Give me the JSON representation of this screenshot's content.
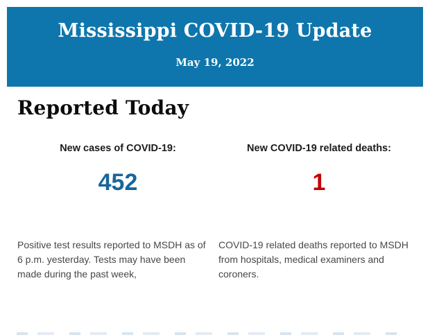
{
  "page": {
    "background_color": "#ffffff"
  },
  "header": {
    "title": "Mississippi COVID-19 Update",
    "date": "May 19, 2022",
    "background_color": "#0e76ad",
    "text_color": "#ffffff"
  },
  "report": {
    "heading": "Reported Today",
    "stats": [
      {
        "label": "New cases of COVID-19:",
        "value": "452",
        "value_color": "#17669c",
        "description": "Positive test results reported to MSDH as of 6 p.m. yesterday. Tests may have been made during the past week,"
      },
      {
        "label": "New COVID-19 related deaths:",
        "value": "1",
        "value_color": "#c40000",
        "description": "COVID-19 related deaths reported to MSDH from hospitals, medical examiners and coroners."
      }
    ]
  }
}
